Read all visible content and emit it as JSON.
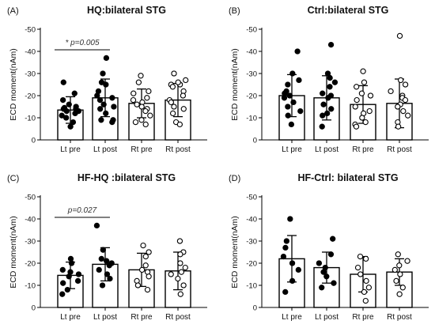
{
  "chart_data": [
    {
      "type": "bar",
      "panel_label": "(A)",
      "title": "HQ:bilateral STG",
      "ylabel": "ECD moment(nAm)",
      "ylim": [
        0,
        -50
      ],
      "yticks": [
        "0",
        "-10",
        "-20",
        "-30",
        "-40",
        "-50"
      ],
      "categories": [
        "Lt pre",
        "Lt post",
        "Rt pre",
        "Rt post"
      ],
      "values": [
        -13.5,
        -19,
        -16.5,
        -18
      ],
      "sd": [
        6,
        8.5,
        6.5,
        7.5
      ],
      "points": [
        [
          -21,
          -18,
          -16,
          -15,
          -14.5,
          -14,
          -14,
          -13,
          -13,
          -12,
          -11,
          -10,
          -8,
          -6,
          -26
        ],
        [
          -37,
          -30,
          -26,
          -25,
          -22,
          -20,
          -19,
          -18,
          -16,
          -15,
          -14,
          -12,
          -9,
          -8,
          -9
        ],
        [
          -29,
          -26,
          -22,
          -21,
          -19,
          -18,
          -17,
          -16,
          -15,
          -14,
          -13,
          -11,
          -9,
          -7,
          -8
        ],
        [
          -30,
          -27,
          -25,
          -25,
          -24,
          -22,
          -20,
          -18,
          -17,
          -15,
          -14,
          -12,
          -8,
          -7,
          -26
        ]
      ],
      "point_fill": [
        "black",
        "black",
        "white",
        "white"
      ],
      "annotation": {
        "text": "* p=0.005",
        "from": 0,
        "to": 1
      }
    },
    {
      "type": "bar",
      "panel_label": "(B)",
      "title": "Ctrl:bilateral STG",
      "ylabel": "ECD moment(nAm)",
      "ylim": [
        0,
        -50
      ],
      "yticks": [
        "0",
        "-10",
        "-20",
        "-30",
        "-40",
        "-50"
      ],
      "categories": [
        "Lt pre",
        "Lt post",
        "Rt pre",
        "Rt post"
      ],
      "values": [
        -20,
        -19,
        -16,
        -16.5
      ],
      "sd": [
        9.5,
        10,
        8.5,
        11
      ],
      "points": [
        [
          -40,
          -30,
          -27,
          -25,
          -22,
          -21,
          -20,
          -19,
          -17,
          -15,
          -13,
          -11,
          -7
        ],
        [
          -43,
          -30,
          -28,
          -26,
          -24,
          -21,
          -20,
          -19,
          -16,
          -14,
          -12,
          -11,
          -6
        ],
        [
          -31,
          -26,
          -24,
          -21,
          -20,
          -18,
          -15,
          -13,
          -12,
          -10,
          -8,
          -7,
          -6
        ],
        [
          -47,
          -27,
          -25,
          -22,
          -20,
          -19,
          -18,
          -16,
          -15,
          -13,
          -11,
          -8,
          -6
        ]
      ],
      "point_fill": [
        "black",
        "black",
        "white",
        "white"
      ],
      "annotation": null
    },
    {
      "type": "bar",
      "panel_label": "(C)",
      "title": "HF-HQ :bilateral STG",
      "ylabel": "ECD moment(nAm)",
      "ylim": [
        0,
        -50
      ],
      "yticks": [
        "0",
        "-10",
        "-20",
        "-30",
        "-40",
        "-50"
      ],
      "categories": [
        "Lt pre",
        "Lt post",
        "Rt pre",
        "Rt post"
      ],
      "values": [
        -14.5,
        -19.5,
        -17,
        -16.5
      ],
      "sd": [
        6,
        7.5,
        7.5,
        8.5
      ],
      "points": [
        [
          -22,
          -20,
          -17,
          -16,
          -15,
          -14,
          -12,
          -11,
          -8,
          -6
        ],
        [
          -37,
          -26,
          -22,
          -21,
          -20,
          -19,
          -17,
          -15,
          -13,
          -10
        ],
        [
          -28,
          -25,
          -23,
          -19,
          -17,
          -16,
          -14,
          -12,
          -10,
          -8
        ],
        [
          -30,
          -25,
          -24,
          -20,
          -18,
          -16,
          -15,
          -13,
          -10,
          -6
        ]
      ],
      "point_fill": [
        "black",
        "black",
        "white",
        "white"
      ],
      "annotation": {
        "text": "p=0.027",
        "from": 0,
        "to": 1
      }
    },
    {
      "type": "bar",
      "panel_label": "(D)",
      "title": "HF-Ctrl: bilateral STG",
      "ylabel": "ECD moment(nAm)",
      "ylim": [
        0,
        -50
      ],
      "yticks": [
        "0",
        "-10",
        "-20",
        "-30",
        "-40",
        "-50"
      ],
      "categories": [
        "Lt pre",
        "Lt post",
        "Rt pre",
        "Rt post"
      ],
      "values": [
        -22,
        -18,
        -15,
        -16
      ],
      "sd": [
        10.5,
        7,
        8,
        6
      ],
      "points": [
        [
          -40,
          -30,
          -27,
          -23,
          -20,
          -17,
          -12,
          -7
        ],
        [
          -31,
          -24,
          -20,
          -18,
          -16,
          -14,
          -11,
          -9
        ],
        [
          -23,
          -22,
          -18,
          -15,
          -12,
          -9,
          -7,
          -3
        ],
        [
          -24,
          -21,
          -19,
          -17,
          -15,
          -12,
          -9,
          -6
        ]
      ],
      "point_fill": [
        "black",
        "black",
        "white",
        "white"
      ],
      "annotation": null
    }
  ]
}
